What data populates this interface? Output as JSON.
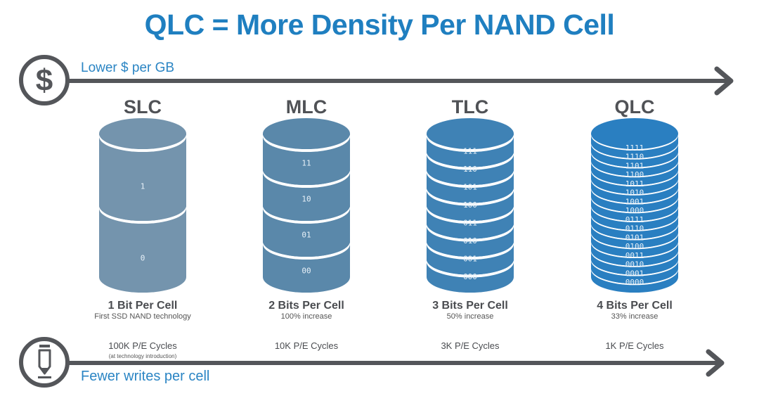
{
  "title": "QLC = More Density Per NAND Cell",
  "top_axis": {
    "label": "Lower $ per GB",
    "icon": "dollar-icon"
  },
  "bottom_axis": {
    "label": "Fewer writes per cell",
    "icon": "pencil-icon"
  },
  "colors": {
    "title": "#1f7fc0",
    "axis": "#54565a",
    "label": "#2b85c4"
  },
  "cells": [
    {
      "name": "SLC",
      "bits": "1 Bit Per Cell",
      "note": "First SSD NAND technology",
      "pe": "100K P/E Cycles",
      "pe_note": "(at technology introduction)",
      "color": "#7494ad",
      "levels": [
        "1",
        "0"
      ]
    },
    {
      "name": "MLC",
      "bits": "2 Bits Per Cell",
      "note": "100% increase",
      "pe": "10K P/E Cycles",
      "color": "#5a88aa",
      "levels": [
        "11",
        "10",
        "01",
        "00"
      ]
    },
    {
      "name": "TLC",
      "bits": "3 Bits Per Cell",
      "note": "50% increase",
      "pe": "3K P/E Cycles",
      "color": "#3f82b5",
      "levels": [
        "111",
        "110",
        "101",
        "100",
        "011",
        "010",
        "001",
        "000"
      ]
    },
    {
      "name": "QLC",
      "bits": "4 Bits Per Cell",
      "note": "33% increase",
      "pe": "1K P/E Cycles",
      "color": "#2a7fc1",
      "levels": [
        "1111",
        "1110",
        "1101",
        "1100",
        "1011",
        "1010",
        "1001",
        "1000",
        "0111",
        "0110",
        "0101",
        "0100",
        "0011",
        "0010",
        "0001",
        "0000"
      ]
    }
  ]
}
